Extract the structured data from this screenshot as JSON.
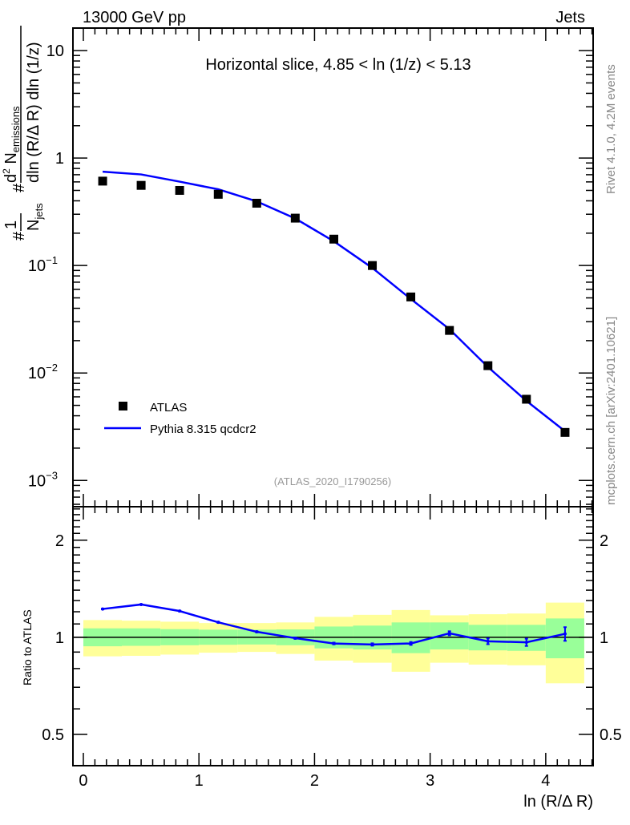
{
  "header": {
    "left": "13000 GeV pp",
    "right": "Jets"
  },
  "side_labels": {
    "rivet": "Rivet 4.1.0,  4.2M events",
    "mcplots": "mcplots.cern.ch [arXiv:2401.10621]"
  },
  "colors": {
    "data": "#000000",
    "mc": "#0000ff",
    "band_inner": "#99ff99",
    "band_outer": "#ffff99",
    "gray": "#888888"
  },
  "chart_data": [
    {
      "type": "scatter",
      "title": "Horizontal slice, 4.85 < ln (1/z) < 5.13",
      "analysis_label": "(ATLAS_2020_I1790256)",
      "ylabel": {
        "prefix": "#",
        "num1": "1",
        "den1": "N",
        "den1_sub": "jets",
        "hash": "#",
        "num2": "d",
        "num2_sup": "2",
        "num2_n": " N",
        "num2_sub": "emissions",
        "den2": "dln (R/Δ R) dln (1/z)"
      },
      "yscale": "log",
      "xlim": [
        -0.09,
        4.41
      ],
      "ylim": [
        0.00057,
        16.2
      ],
      "ytick_labels": [
        {
          "v": 10,
          "t": "10"
        },
        {
          "v": 1,
          "t": "1"
        },
        {
          "v": 0.1,
          "t": "10",
          "e": "−1"
        },
        {
          "v": 0.01,
          "t": "10",
          "e": "−2"
        },
        {
          "v": 0.001,
          "t": "10",
          "e": "−3"
        }
      ],
      "legend": {
        "placement": "bottom-left",
        "entries": [
          "ATLAS",
          "Pythia 8.315 qcdcr2"
        ]
      },
      "x": [
        0.167,
        0.5,
        0.833,
        1.167,
        1.5,
        1.833,
        2.167,
        2.5,
        2.833,
        3.167,
        3.5,
        3.833,
        4.167
      ],
      "series": [
        {
          "name": "ATLAS",
          "style": "markers",
          "values": [
            0.61,
            0.557,
            0.5,
            0.46,
            0.38,
            0.276,
            0.176,
            0.1,
            0.051,
            0.0249,
            0.0117,
            0.0057,
            0.0028
          ]
        },
        {
          "name": "Pythia 8.315 qcdcr2",
          "style": "line",
          "values": [
            0.747,
            0.704,
            0.603,
            0.512,
            0.395,
            0.274,
            0.168,
            0.095,
            0.0488,
            0.0256,
            0.01137,
            0.0055,
            0.00287
          ]
        }
      ]
    },
    {
      "type": "line",
      "ylabel": "Ratio to ATLAS",
      "xlabel": "ln (R/Δ R)",
      "yscale": "log",
      "xlim": [
        -0.09,
        4.41
      ],
      "ylim": [
        0.4,
        2.54
      ],
      "ytick_labels": [
        {
          "v": 2,
          "t": "2"
        },
        {
          "v": 1,
          "t": "1"
        },
        {
          "v": 0.5,
          "t": "0.5"
        }
      ],
      "xtick_labels": [
        "0",
        "1",
        "2",
        "3",
        "4"
      ],
      "bin_edges": [
        0,
        0.333,
        0.667,
        1.0,
        1.333,
        1.667,
        2.0,
        2.333,
        2.667,
        3.0,
        3.333,
        3.667,
        4.0,
        4.333
      ],
      "band_outer": {
        "lo": [
          0.873,
          0.876,
          0.884,
          0.896,
          0.901,
          0.888,
          0.847,
          0.834,
          0.782,
          0.834,
          0.823,
          0.819,
          0.72
        ],
        "hi": [
          1.131,
          1.126,
          1.118,
          1.107,
          1.107,
          1.112,
          1.157,
          1.174,
          1.215,
          1.17,
          1.179,
          1.185,
          1.281
        ]
      },
      "band_inner": {
        "lo": [
          0.938,
          0.941,
          0.945,
          0.948,
          0.95,
          0.945,
          0.924,
          0.917,
          0.893,
          0.917,
          0.911,
          0.908,
          0.861
        ],
        "hi": [
          1.066,
          1.066,
          1.06,
          1.056,
          1.056,
          1.058,
          1.08,
          1.087,
          1.112,
          1.112,
          1.093,
          1.093,
          1.144
        ]
      },
      "x": [
        0.167,
        0.5,
        0.833,
        1.167,
        1.5,
        1.833,
        2.167,
        2.5,
        2.833,
        3.167,
        3.5,
        3.833,
        4.167
      ],
      "series": [
        {
          "name": "Pythia 8.315 qcdcr2 / ATLAS",
          "values": [
            1.224,
            1.264,
            1.206,
            1.113,
            1.04,
            0.994,
            0.957,
            0.95,
            0.957,
            1.029,
            0.972,
            0.965,
            1.025
          ],
          "err": [
            0.003,
            0.003,
            0.003,
            0.004,
            0.004,
            0.005,
            0.006,
            0.008,
            0.01,
            0.015,
            0.02,
            0.025,
            0.05
          ]
        }
      ]
    }
  ]
}
